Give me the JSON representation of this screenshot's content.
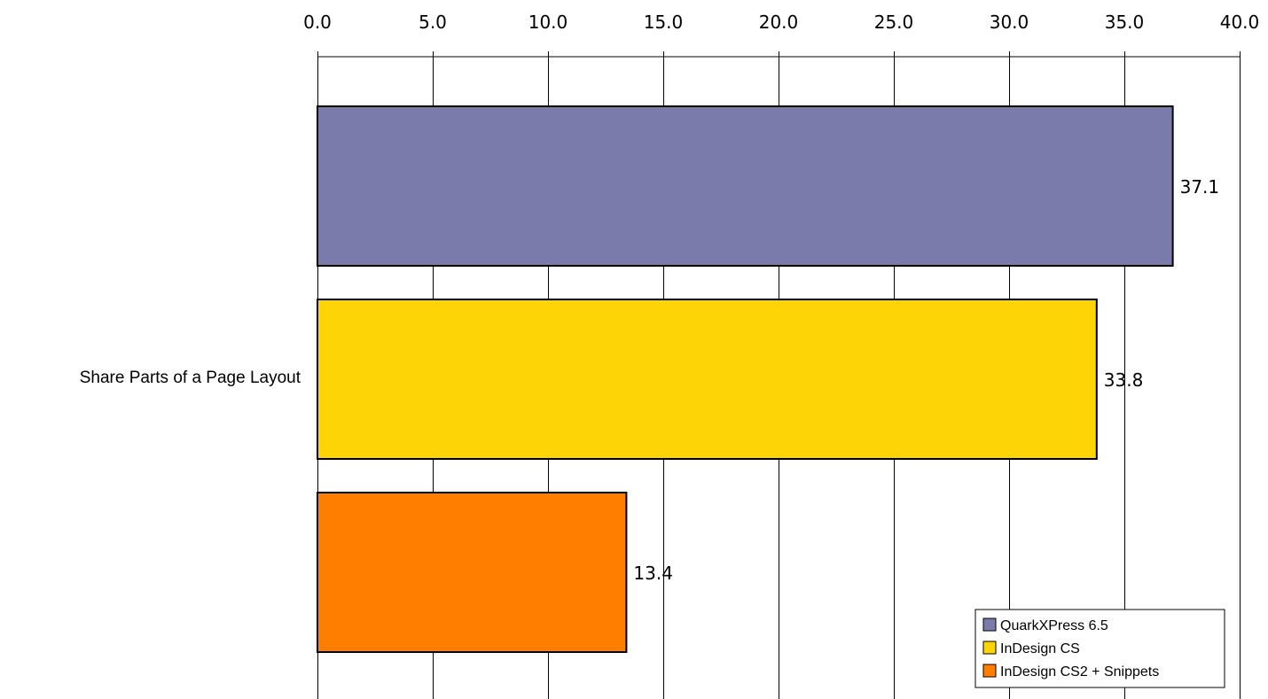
{
  "chart_data": {
    "type": "bar",
    "orientation": "horizontal",
    "categories": [
      "Share Parts of a Page Layout"
    ],
    "series": [
      {
        "name": "QuarkXPress 6.5",
        "values": [
          37.1
        ],
        "color": "#7A7BAB"
      },
      {
        "name": "InDesign CS",
        "values": [
          33.8
        ],
        "color": "#FDD405"
      },
      {
        "name": "InDesign CS2 + Snippets",
        "values": [
          13.4
        ],
        "color": "#FF7E00"
      }
    ],
    "data_labels": [
      "37.1",
      "33.8",
      "13.4"
    ],
    "x_ticks": [
      "0.0",
      "5.0",
      "10.0",
      "15.0",
      "20.0",
      "25.0",
      "30.0",
      "35.0",
      "40.0"
    ],
    "xlim": [
      0,
      40
    ],
    "x_axis_position": "top",
    "grid": true,
    "legend_position": "bottom-right",
    "title": "",
    "xlabel": "",
    "ylabel": ""
  }
}
